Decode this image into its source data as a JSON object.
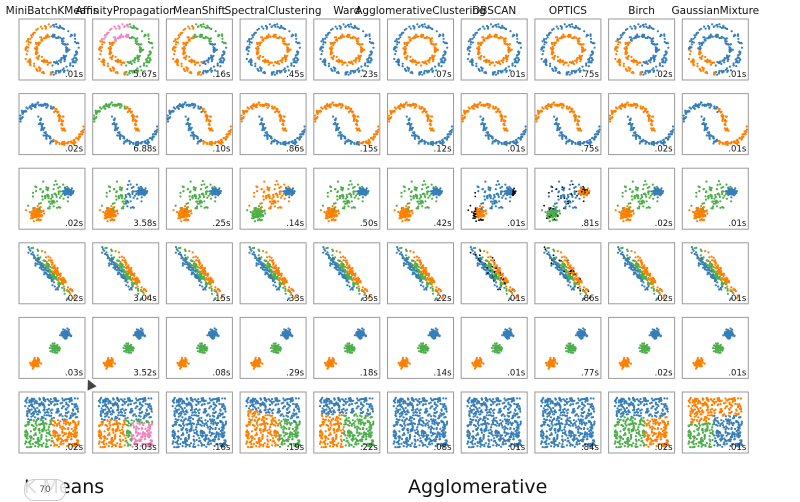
{
  "colors": {
    "c0": "#377eb8",
    "c1": "#ff7f00",
    "c2": "#4daf4a",
    "c3": "#f781bf",
    "c4": "#a65628",
    "c5": "#984ea3",
    "c6": "#999999",
    "c7": "#e41a1c",
    "noise": "#000000"
  },
  "chart_data": {
    "type": "scatter",
    "columns": [
      "MiniBatchKMeans",
      "AffinityPropagation",
      "MeanShift",
      "SpectralClustering",
      "Ward",
      "AgglomerativeClustering",
      "DBSCAN",
      "OPTICS",
      "Birch",
      "GaussianMixture"
    ],
    "datasets": [
      "noisy_circles",
      "noisy_moons",
      "varied",
      "aniso",
      "blobs",
      "no_structure"
    ],
    "timings": [
      [
        ".01s",
        "5.67s",
        ".16s",
        ".45s",
        ".23s",
        ".07s",
        ".01s",
        ".75s",
        ".02s",
        ".01s"
      ],
      [
        ".02s",
        "6.88s",
        ".10s",
        ".86s",
        ".15s",
        ".12s",
        ".01s",
        ".75s",
        ".02s",
        ".01s"
      ],
      [
        ".02s",
        "3.58s",
        ".25s",
        ".14s",
        ".50s",
        ".42s",
        ".01s",
        ".81s",
        ".02s",
        ".01s"
      ],
      [
        ".02s",
        "3.04s",
        ".15s",
        ".33s",
        ".35s",
        ".22s",
        ".01s",
        ".86s",
        ".02s",
        ".01s"
      ],
      [
        ".03s",
        "3.52s",
        ".08s",
        ".29s",
        ".18s",
        ".14s",
        ".01s",
        ".77s",
        ".02s",
        ".01s"
      ],
      [
        ".02s",
        "3.03s",
        ".16s",
        ".19s",
        ".22s",
        ".08s",
        ".01s",
        ".84s",
        ".02s",
        ".01s"
      ]
    ]
  },
  "bottom_labels": {
    "left": "K Means",
    "center": "Agglomerative"
  },
  "player_badge": "70"
}
